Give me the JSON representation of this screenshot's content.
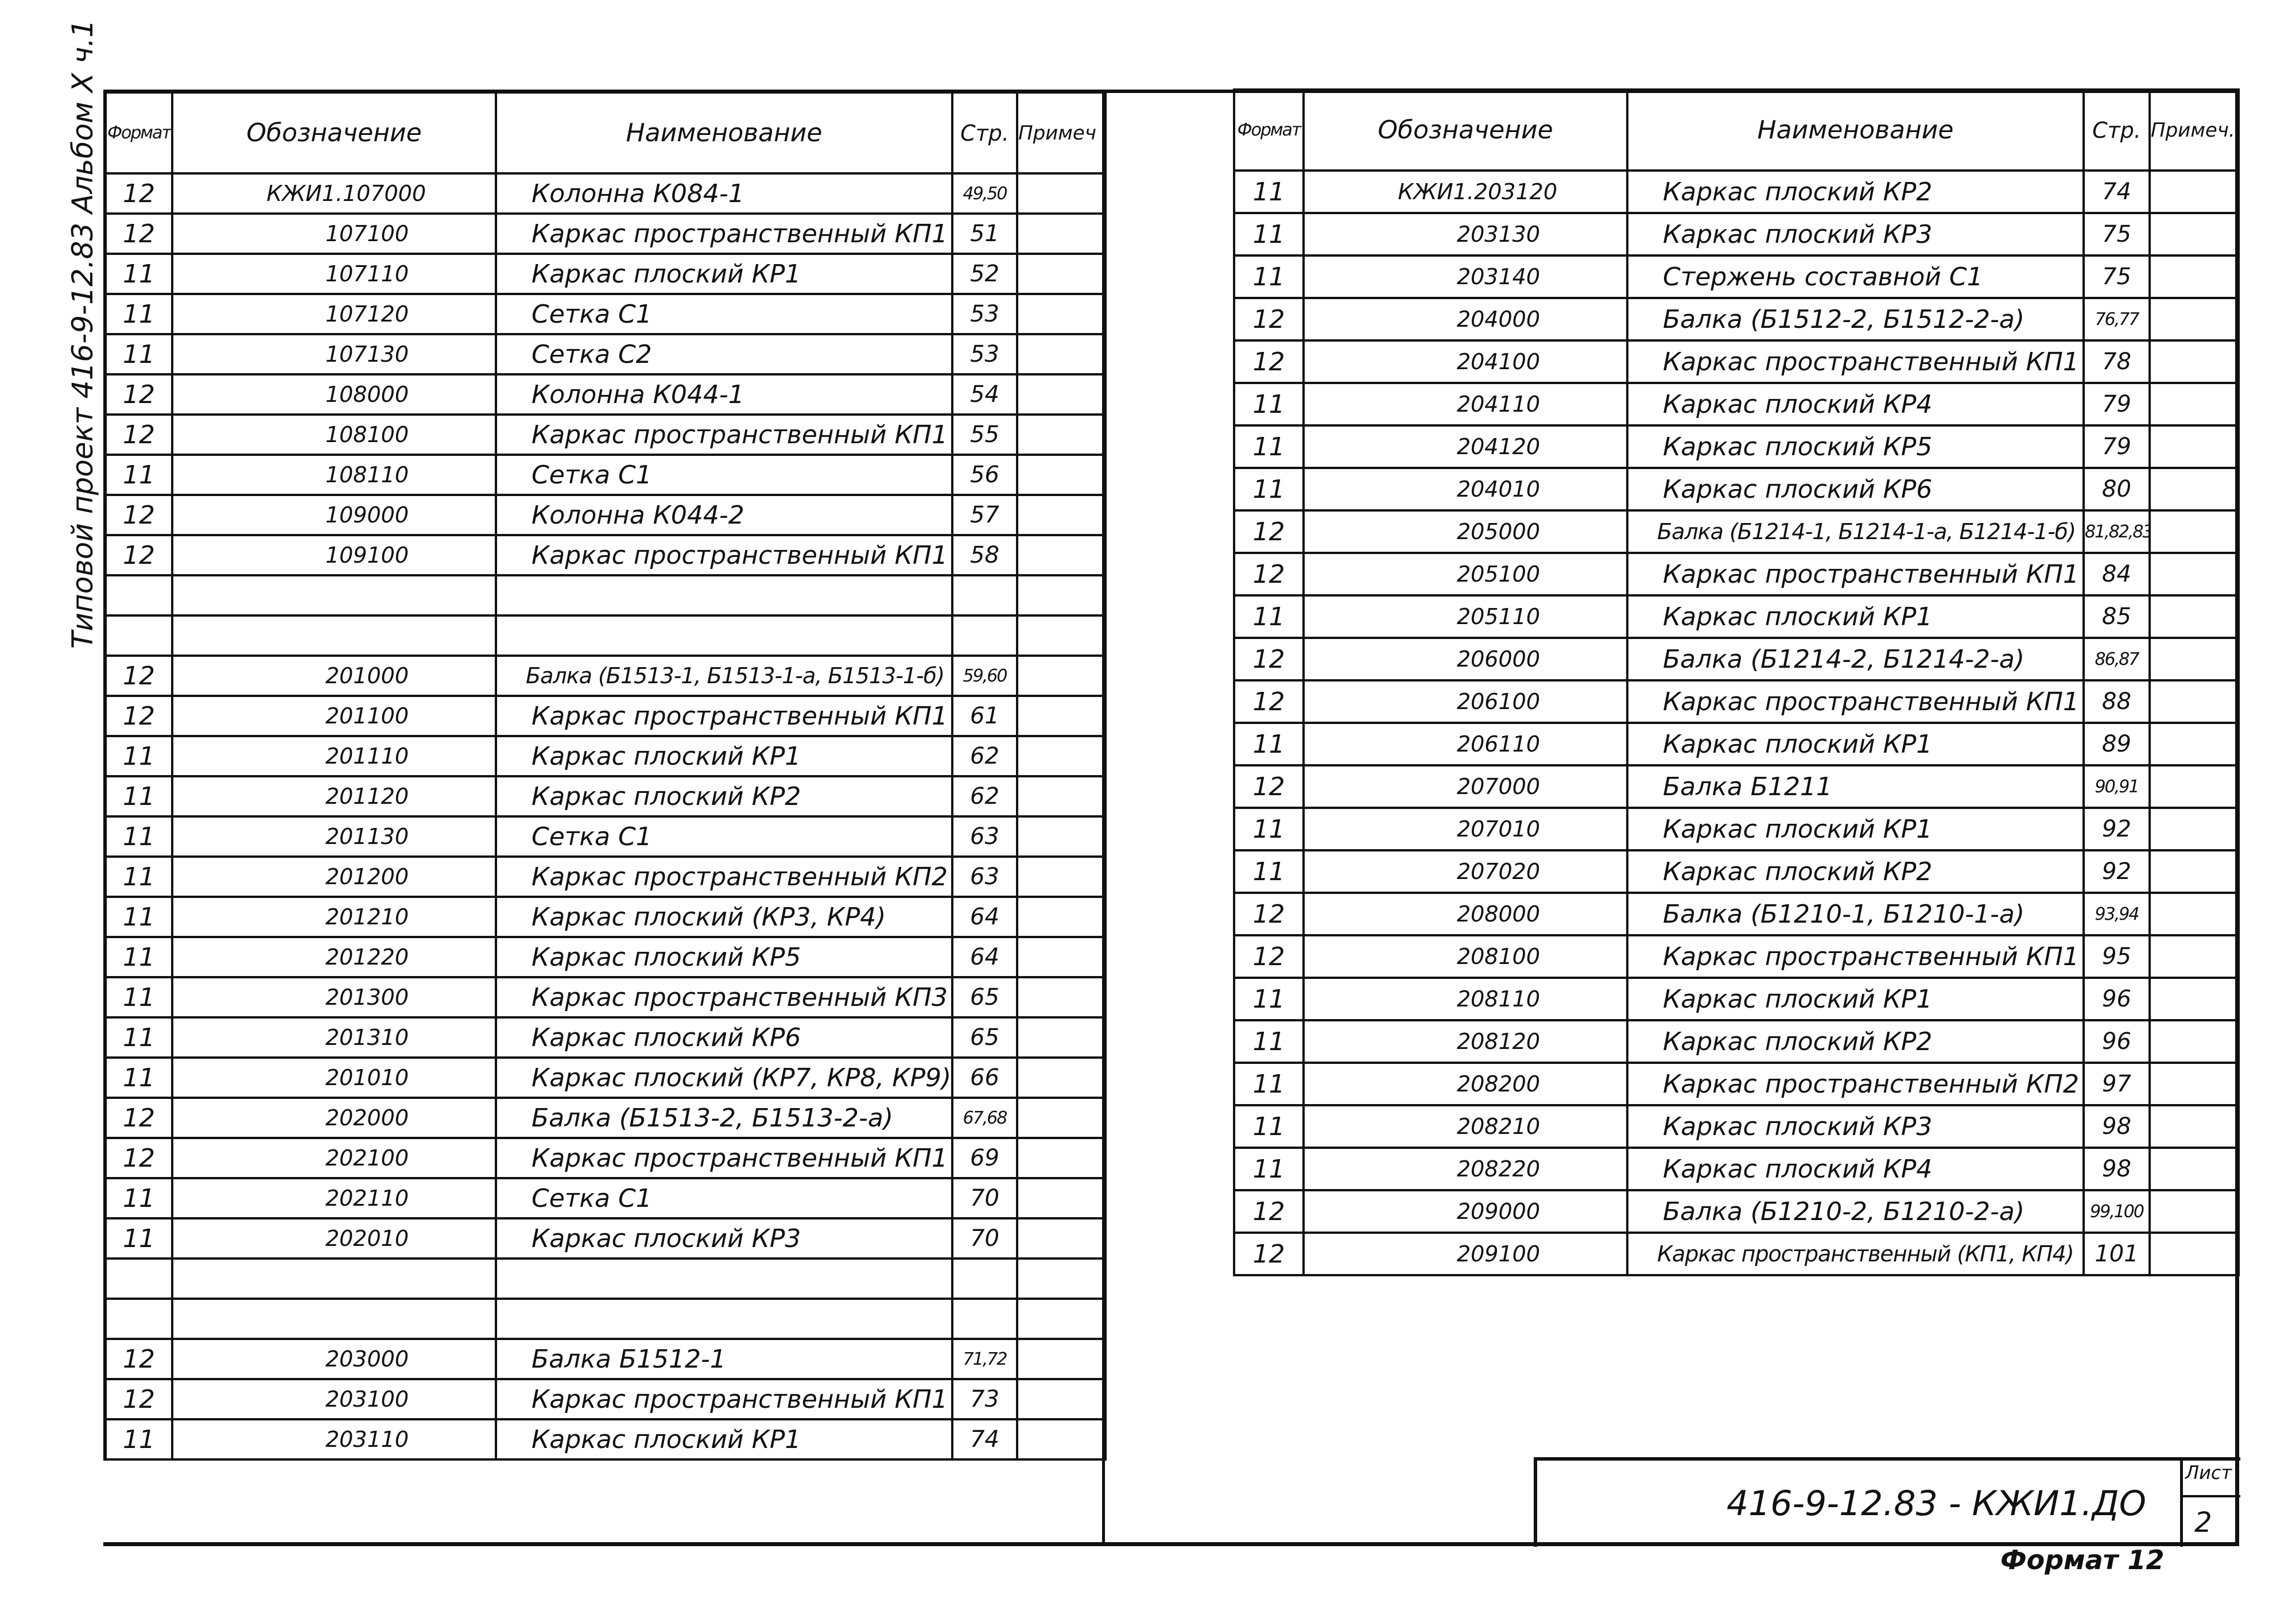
{
  "side_title": "Типовой проект 416-9-12.83 Альбом X ч.1",
  "headers": {
    "format": "Формат",
    "designation": "Обозначение",
    "name": "Наименование",
    "page": "Стр.",
    "note_left": "Примеч",
    "note_right": "Примеч."
  },
  "left_rows": [
    {
      "format": "12",
      "designation": "КЖИ1.107000",
      "name": "Колонна К084-1",
      "page": "49,50"
    },
    {
      "format": "12",
      "designation": "107100",
      "name": "Каркас пространственный КП1",
      "page": "51"
    },
    {
      "format": "11",
      "designation": "107110",
      "name": "Каркас плоский КР1",
      "page": "52"
    },
    {
      "format": "11",
      "designation": "107120",
      "name": "Сетка С1",
      "page": "53"
    },
    {
      "format": "11",
      "designation": "107130",
      "name": "Сетка С2",
      "page": "53"
    },
    {
      "format": "12",
      "designation": "108000",
      "name": "Колонна К044-1",
      "page": "54"
    },
    {
      "format": "12",
      "designation": "108100",
      "name": "Каркас пространственный КП1",
      "page": "55"
    },
    {
      "format": "11",
      "designation": "108110",
      "name": "Сетка С1",
      "page": "56"
    },
    {
      "format": "12",
      "designation": "109000",
      "name": "Колонна К044-2",
      "page": "57"
    },
    {
      "format": "12",
      "designation": "109100",
      "name": "Каркас пространственный КП1",
      "page": "58"
    },
    {
      "format": "",
      "designation": "",
      "name": "",
      "page": ""
    },
    {
      "format": "",
      "designation": "",
      "name": "",
      "page": ""
    },
    {
      "format": "12",
      "designation": "201000",
      "name": "Балка (Б1513-1, Б1513-1-а, Б1513-1-б)",
      "page": "59,60"
    },
    {
      "format": "12",
      "designation": "201100",
      "name": "Каркас пространственный КП1",
      "page": "61"
    },
    {
      "format": "11",
      "designation": "201110",
      "name": "Каркас плоский КР1",
      "page": "62"
    },
    {
      "format": "11",
      "designation": "201120",
      "name": "Каркас плоский КР2",
      "page": "62"
    },
    {
      "format": "11",
      "designation": "201130",
      "name": "Сетка С1",
      "page": "63"
    },
    {
      "format": "11",
      "designation": "201200",
      "name": "Каркас пространственный КП2",
      "page": "63"
    },
    {
      "format": "11",
      "designation": "201210",
      "name": "Каркас плоский (КР3, КР4)",
      "page": "64"
    },
    {
      "format": "11",
      "designation": "201220",
      "name": "Каркас плоский КР5",
      "page": "64"
    },
    {
      "format": "11",
      "designation": "201300",
      "name": "Каркас пространственный КП3",
      "page": "65"
    },
    {
      "format": "11",
      "designation": "201310",
      "name": "Каркас плоский КР6",
      "page": "65"
    },
    {
      "format": "11",
      "designation": "201010",
      "name": "Каркас плоский (КР7, КР8, КР9)",
      "page": "66"
    },
    {
      "format": "12",
      "designation": "202000",
      "name": "Балка (Б1513-2, Б1513-2-а)",
      "page": "67,68"
    },
    {
      "format": "12",
      "designation": "202100",
      "name": "Каркас пространственный КП1",
      "page": "69"
    },
    {
      "format": "11",
      "designation": "202110",
      "name": "Сетка С1",
      "page": "70"
    },
    {
      "format": "11",
      "designation": "202010",
      "name": "Каркас плоский КР3",
      "page": "70"
    },
    {
      "format": "",
      "designation": "",
      "name": "",
      "page": ""
    },
    {
      "format": "",
      "designation": "",
      "name": "",
      "page": ""
    },
    {
      "format": "12",
      "designation": "203000",
      "name": "Балка Б1512-1",
      "page": "71,72"
    },
    {
      "format": "12",
      "designation": "203100",
      "name": "Каркас пространственный КП1",
      "page": "73"
    },
    {
      "format": "11",
      "designation": "203110",
      "name": "Каркас плоский КР1",
      "page": "74"
    }
  ],
  "right_rows": [
    {
      "format": "11",
      "designation": "КЖИ1.203120",
      "name": "Каркас плоский КР2",
      "page": "74"
    },
    {
      "format": "11",
      "designation": "203130",
      "name": "Каркас плоский КР3",
      "page": "75"
    },
    {
      "format": "11",
      "designation": "203140",
      "name": "Стержень составной С1",
      "page": "75"
    },
    {
      "format": "12",
      "designation": "204000",
      "name": "Балка (Б1512-2, Б1512-2-а)",
      "page": "76,77"
    },
    {
      "format": "12",
      "designation": "204100",
      "name": "Каркас пространственный КП1",
      "page": "78"
    },
    {
      "format": "11",
      "designation": "204110",
      "name": "Каркас плоский КР4",
      "page": "79"
    },
    {
      "format": "11",
      "designation": "204120",
      "name": "Каркас плоский КР5",
      "page": "79"
    },
    {
      "format": "11",
      "designation": "204010",
      "name": "Каркас плоский КР6",
      "page": "80"
    },
    {
      "format": "12",
      "designation": "205000",
      "name": "Балка (Б1214-1, Б1214-1-а, Б1214-1-б)",
      "page": "81,82,83"
    },
    {
      "format": "12",
      "designation": "205100",
      "name": "Каркас пространственный КП1",
      "page": "84"
    },
    {
      "format": "11",
      "designation": "205110",
      "name": "Каркас плоский КР1",
      "page": "85"
    },
    {
      "format": "12",
      "designation": "206000",
      "name": "Балка (Б1214-2, Б1214-2-а)",
      "page": "86,87"
    },
    {
      "format": "12",
      "designation": "206100",
      "name": "Каркас пространственный КП1",
      "page": "88"
    },
    {
      "format": "11",
      "designation": "206110",
      "name": "Каркас плоский КР1",
      "page": "89"
    },
    {
      "format": "12",
      "designation": "207000",
      "name": "Балка Б1211",
      "page": "90,91"
    },
    {
      "format": "11",
      "designation": "207010",
      "name": "Каркас плоский КР1",
      "page": "92"
    },
    {
      "format": "11",
      "designation": "207020",
      "name": "Каркас плоский КР2",
      "page": "92"
    },
    {
      "format": "12",
      "designation": "208000",
      "name": "Балка (Б1210-1, Б1210-1-а)",
      "page": "93,94"
    },
    {
      "format": "12",
      "designation": "208100",
      "name": "Каркас пространственный КП1",
      "page": "95"
    },
    {
      "format": "11",
      "designation": "208110",
      "name": "Каркас плоский КР1",
      "page": "96"
    },
    {
      "format": "11",
      "designation": "208120",
      "name": "Каркас плоский КР2",
      "page": "96"
    },
    {
      "format": "11",
      "designation": "208200",
      "name": "Каркас пространственный КП2",
      "page": "97"
    },
    {
      "format": "11",
      "designation": "208210",
      "name": "Каркас плоский КР3",
      "page": "98"
    },
    {
      "format": "11",
      "designation": "208220",
      "name": "Каркас плоский КР4",
      "page": "98"
    },
    {
      "format": "12",
      "designation": "209000",
      "name": "Балка (Б1210-2, Б1210-2-а)",
      "page": "99,100"
    },
    {
      "format": "12",
      "designation": "209100",
      "name": "Каркас пространственный (КП1, КП4)",
      "page": "101"
    }
  ],
  "stamp": {
    "code": "416-9-12.83 - КЖИ1.ДО",
    "sheet_label": "Лист",
    "sheet_number": "2"
  },
  "format_label": "Формат 12"
}
